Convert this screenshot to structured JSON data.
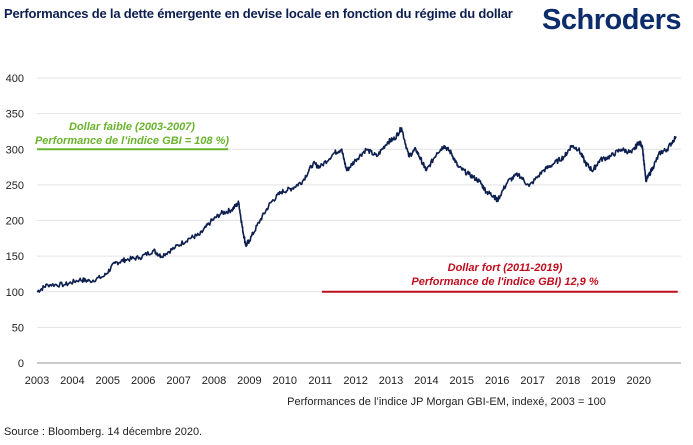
{
  "header": {
    "title": "Performances de la dette émergente en devise locale en fonction du régime du dollar",
    "logo": "Schroders"
  },
  "footer": {
    "source": "Source : Bloomberg. 14 décembre 2020."
  },
  "chart_data": {
    "type": "line",
    "title": "Performances de la dette émergente en devise locale en fonction du régime du dollar",
    "xlabel": "Performances de l’indice JP Morgan GBI-EM, indexé, 2003 = 100",
    "ylabel": "",
    "xlim": [
      2003,
      2021.1
    ],
    "ylim": [
      0,
      400
    ],
    "yticks": [
      0,
      50,
      100,
      150,
      200,
      250,
      300,
      350,
      400
    ],
    "xticks": [
      2003,
      2004,
      2005,
      2006,
      2007,
      2008,
      2009,
      2010,
      2011,
      2012,
      2013,
      2014,
      2015,
      2016,
      2017,
      2018,
      2019,
      2020
    ],
    "grid": "horizontal",
    "line_color": "#0d1f4f",
    "series": [
      {
        "x": [
          2003.0,
          2003.3,
          2003.8,
          2004.2,
          2004.5,
          2004.9,
          2005.2,
          2005.5,
          2005.9,
          2006.3,
          2006.5,
          2006.9,
          2007.3,
          2007.6,
          2007.9,
          2008.2,
          2008.5,
          2008.7,
          2008.8,
          2008.9,
          2009.0,
          2009.3,
          2009.6,
          2009.9,
          2010.2,
          2010.5,
          2010.8,
          2011.0,
          2011.4,
          2011.6,
          2011.75,
          2012.0,
          2012.3,
          2012.6,
          2012.9,
          2013.1,
          2013.3,
          2013.5,
          2013.7,
          2013.9,
          2014.0,
          2014.3,
          2014.5,
          2014.7,
          2014.9,
          2015.2,
          2015.5,
          2015.7,
          2015.9,
          2016.0,
          2016.3,
          2016.6,
          2016.9,
          2017.3,
          2017.6,
          2017.9,
          2018.1,
          2018.3,
          2018.5,
          2018.7,
          2018.9,
          2019.2,
          2019.5,
          2019.8,
          2020.0,
          2020.1,
          2020.2,
          2020.4,
          2020.6,
          2020.8,
          2021.05
        ],
        "y": [
          100,
          110,
          110,
          117,
          115,
          122,
          140,
          145,
          148,
          158,
          150,
          162,
          175,
          180,
          198,
          210,
          215,
          225,
          190,
          165,
          172,
          200,
          225,
          240,
          245,
          255,
          280,
          275,
          295,
          300,
          270,
          285,
          300,
          290,
          310,
          315,
          330,
          290,
          300,
          280,
          270,
          295,
          305,
          295,
          275,
          265,
          255,
          240,
          235,
          228,
          255,
          265,
          248,
          270,
          280,
          290,
          305,
          300,
          280,
          270,
          285,
          290,
          300,
          295,
          310,
          305,
          255,
          275,
          295,
          300,
          318
        ]
      }
    ],
    "annotations": [
      {
        "name": "dollar-faible",
        "line1": "Dollar faible (2003-2007)",
        "line2": "Performance de l’indice GBI = 108 %)",
        "color": "#6ab42d",
        "level": 300,
        "x_range": [
          2003,
          2008.4
        ]
      },
      {
        "name": "dollar-fort",
        "line1": "Dollar fort (2011-2019)",
        "line2": "Performance de l'indice GBI) 12,9 %",
        "color": "#c00d1e",
        "level": 100,
        "x_range": [
          2011.05,
          2021.1
        ]
      }
    ]
  }
}
